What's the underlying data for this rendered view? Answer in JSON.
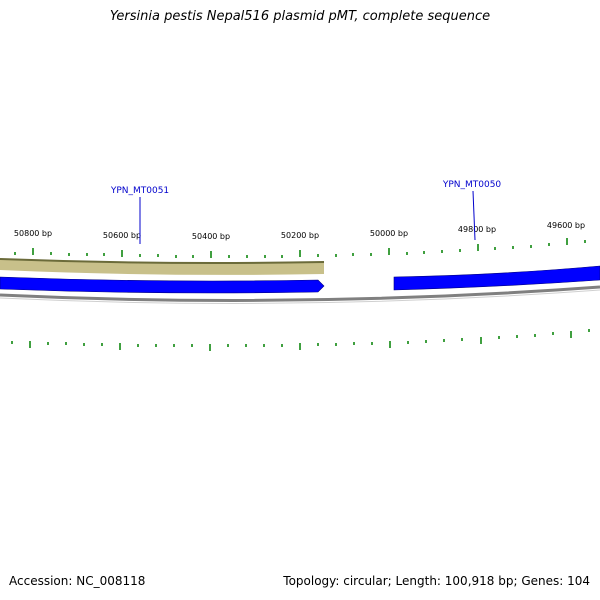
{
  "title": "Yersinia pestis Nepal516 plasmid pMT, complete sequence",
  "footer": {
    "accession": "Accession: NC_008118",
    "summary": "Topology: circular; Length: 100,918 bp; Genes: 104"
  },
  "scale": {
    "labels": [
      "50800 bp",
      "50600 bp",
      "50400 bp",
      "50200 bp",
      "50000 bp",
      "49800 bp",
      "49600 bp"
    ]
  },
  "genes": [
    {
      "name": "YPN_MT0051"
    },
    {
      "name": "YPN_MT0050"
    }
  ],
  "colors": {
    "backbone": "#808080",
    "forward_gene": "#0000ff",
    "feature": "#c8c08a",
    "tick": "#008000",
    "gene_label": "#0000cc"
  }
}
